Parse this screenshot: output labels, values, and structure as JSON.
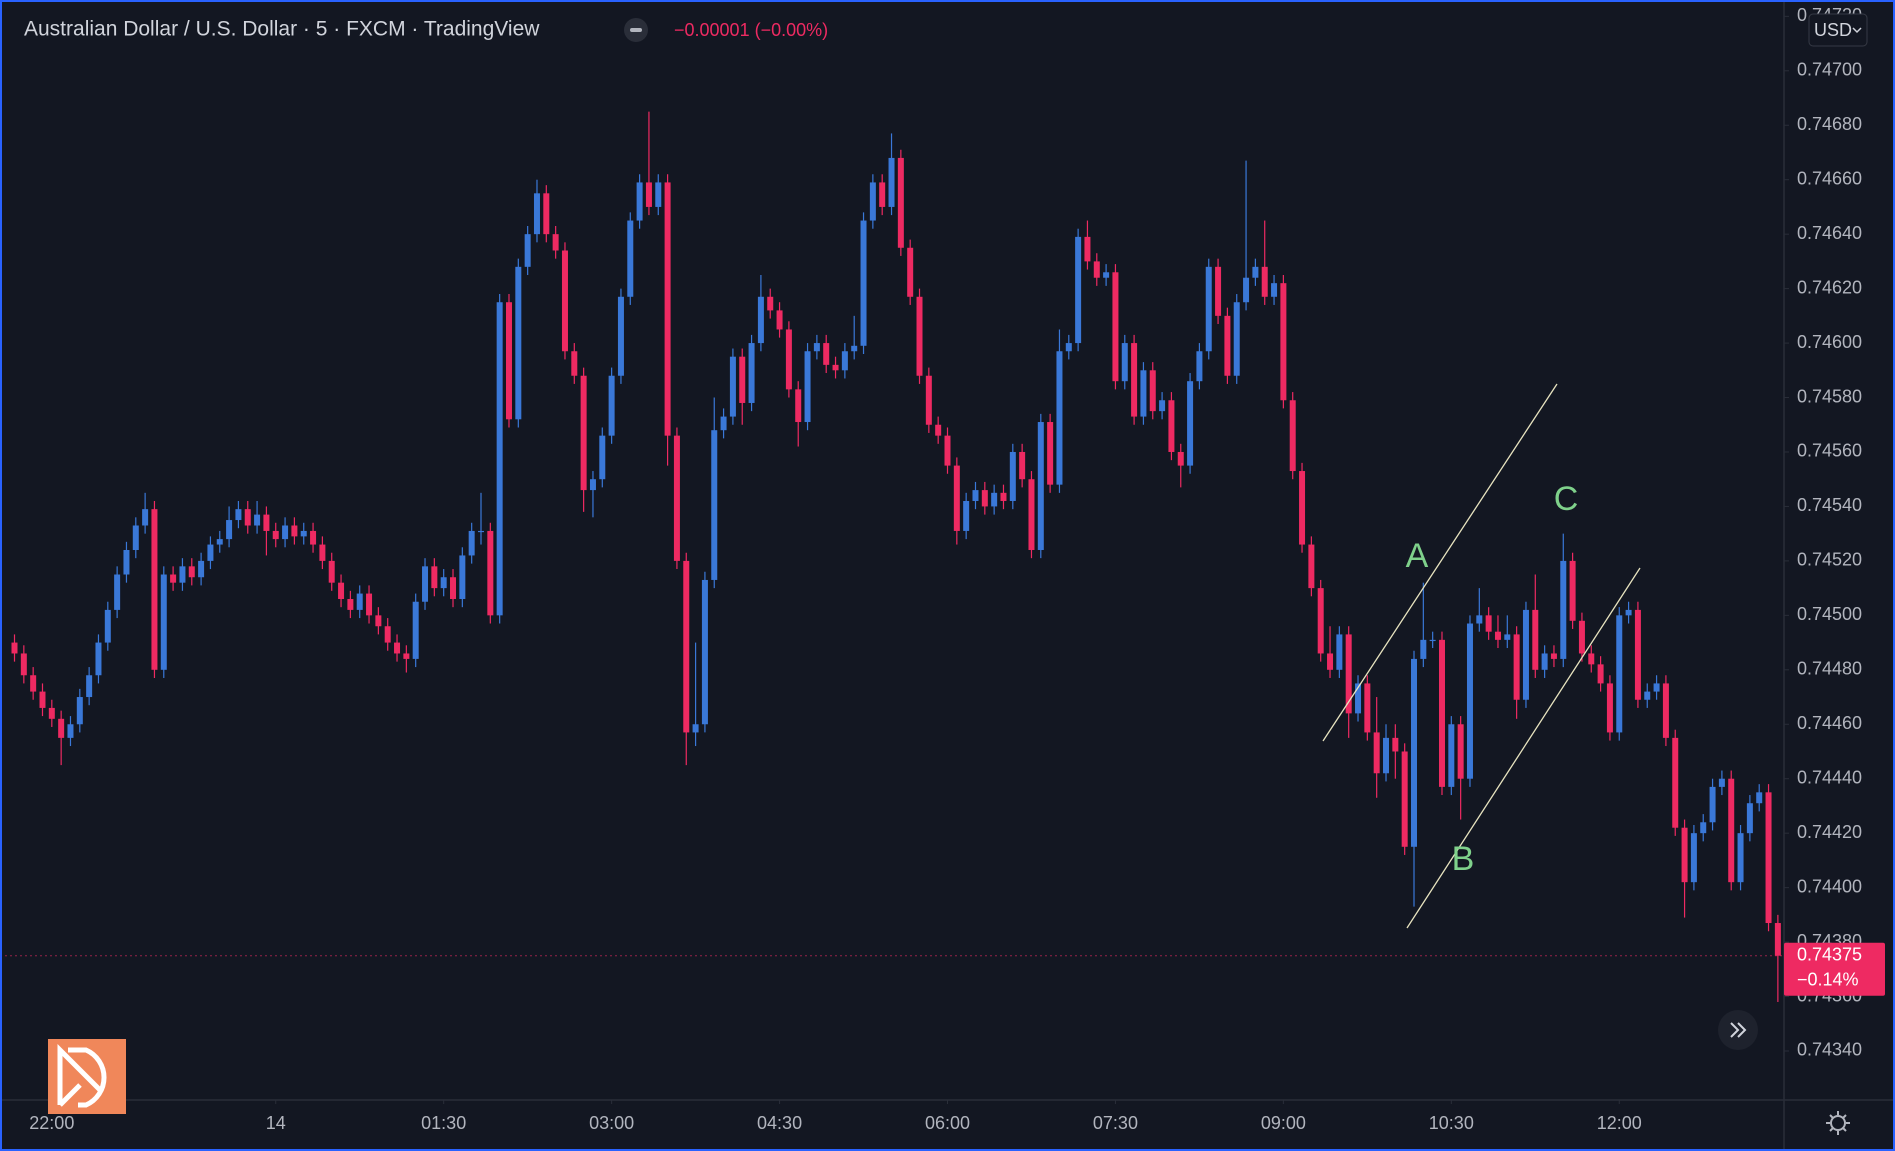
{
  "chart_data": {
    "type": "candlestick",
    "title": "Australian Dollar / U.S. Dollar · 5 · FXCM · TradingView",
    "change": "−0.00001 (−0.00%)",
    "currency": "USD",
    "last_price": 0.74375,
    "last_change": "−0.14%",
    "annotations": [
      "A",
      "B",
      "C"
    ],
    "up_color": "#3a78d8",
    "down_color": "#ee2a62",
    "ylim": [
      0.74322,
      0.74726
    ],
    "yticks": [
      {
        "value": 0.7434,
        "label": "0.74340"
      },
      {
        "value": 0.7436,
        "label": "0.74360"
      },
      {
        "value": 0.7438,
        "label": "0.74380"
      },
      {
        "value": 0.744,
        "label": "0.74400"
      },
      {
        "value": 0.7442,
        "label": "0.74420"
      },
      {
        "value": 0.7444,
        "label": "0.74440"
      },
      {
        "value": 0.7446,
        "label": "0.74460"
      },
      {
        "value": 0.7448,
        "label": "0.74480"
      },
      {
        "value": 0.745,
        "label": "0.74500"
      },
      {
        "value": 0.7452,
        "label": "0.74520"
      },
      {
        "value": 0.7454,
        "label": "0.74540"
      },
      {
        "value": 0.7456,
        "label": "0.74560"
      },
      {
        "value": 0.7458,
        "label": "0.74580"
      },
      {
        "value": 0.746,
        "label": "0.74600"
      },
      {
        "value": 0.7462,
        "label": "0.74620"
      },
      {
        "value": 0.7464,
        "label": "0.74640"
      },
      {
        "value": 0.7466,
        "label": "0.74660"
      },
      {
        "value": 0.7468,
        "label": "0.74680"
      },
      {
        "value": 0.747,
        "label": "0.74700"
      },
      {
        "value": 0.7472,
        "label": "0.74720"
      }
    ],
    "xticks": [
      {
        "value": 4,
        "label": "22:00"
      },
      {
        "value": 28,
        "label": "14"
      },
      {
        "value": 46,
        "label": "01:30"
      },
      {
        "value": 64,
        "label": "03:00"
      },
      {
        "value": 82,
        "label": "04:30"
      },
      {
        "value": 100,
        "label": "06:00"
      },
      {
        "value": 118,
        "label": "07:30"
      },
      {
        "value": 136,
        "label": "09:00"
      },
      {
        "value": 154,
        "label": "10:30"
      },
      {
        "value": 172,
        "label": "12:00"
      }
    ],
    "open": [
      0.7449,
      0.74486,
      0.74478,
      0.74472,
      0.74466,
      0.74462,
      0.74455,
      0.7446,
      0.7447,
      0.74478,
      0.7449,
      0.74502,
      0.74515,
      0.74524,
      0.74533,
      0.74539,
      0.7448,
      0.74515,
      0.74512,
      0.74518,
      0.74514,
      0.7452,
      0.74526,
      0.74528,
      0.74535,
      0.74539,
      0.74533,
      0.74537,
      0.74531,
      0.74528,
      0.74533,
      0.74529,
      0.74531,
      0.74526,
      0.7452,
      0.74512,
      0.74506,
      0.74502,
      0.74508,
      0.745,
      0.74496,
      0.7449,
      0.74486,
      0.74484,
      0.74505,
      0.74518,
      0.7451,
      0.74514,
      0.74506,
      0.74522,
      0.74531,
      0.74531,
      0.745,
      0.74615,
      0.74572,
      0.74628,
      0.7464,
      0.74655,
      0.7464,
      0.74634,
      0.74597,
      0.74588,
      0.74546,
      0.7455,
      0.74566,
      0.74588,
      0.74617,
      0.74645,
      0.74659,
      0.7465,
      0.74659,
      0.74566,
      0.7452,
      0.74457,
      0.7446,
      0.74513,
      0.74568,
      0.74573,
      0.74595,
      0.74578,
      0.746,
      0.74617,
      0.74612,
      0.74605,
      0.74583,
      0.74571,
      0.74597,
      0.746,
      0.74592,
      0.7459,
      0.74597,
      0.74599,
      0.74645,
      0.74659,
      0.7465,
      0.74668,
      0.74635,
      0.74617,
      0.74588,
      0.7457,
      0.74566,
      0.74555,
      0.74531,
      0.74542,
      0.74546,
      0.7454,
      0.74545,
      0.74542,
      0.7456,
      0.7455,
      0.74524,
      0.74571,
      0.74548,
      0.74597,
      0.746,
      0.74639,
      0.7463,
      0.74624,
      0.74626,
      0.74586,
      0.746,
      0.74573,
      0.7459,
      0.74575,
      0.74579,
      0.7456,
      0.74555,
      0.74586,
      0.74597,
      0.74628,
      0.7461,
      0.74588,
      0.74615,
      0.74624,
      0.74628,
      0.74617,
      0.74622,
      0.74579,
      0.74553,
      0.74526,
      0.7451,
      0.74486,
      0.7448,
      0.74493,
      0.74464,
      0.74475,
      0.74457,
      0.74442,
      0.74455,
      0.7445,
      0.74415,
      0.74484,
      0.74491,
      0.74491,
      0.74437,
      0.7446,
      0.7444,
      0.74497,
      0.745,
      0.74494,
      0.74491,
      0.74493,
      0.74469,
      0.74502,
      0.7448,
      0.74486,
      0.74484,
      0.7452,
      0.74498,
      0.74486,
      0.74482,
      0.74475,
      0.74457,
      0.745,
      0.74502,
      0.74469,
      0.74472,
      0.74475,
      0.74455,
      0.74422,
      0.74402,
      0.7442,
      0.74424,
      0.74437,
      0.7444,
      0.74402,
      0.7442,
      0.74431,
      0.74435,
      0.74387
    ],
    "high": [
      0.74493,
      0.74489,
      0.74481,
      0.74475,
      0.74469,
      0.74465,
      0.74463,
      0.74473,
      0.74481,
      0.74493,
      0.74505,
      0.74518,
      0.74527,
      0.74536,
      0.74545,
      0.74542,
      0.74518,
      0.74518,
      0.74521,
      0.74521,
      0.74523,
      0.74529,
      0.74531,
      0.7454,
      0.74542,
      0.74542,
      0.74542,
      0.7454,
      0.74534,
      0.74536,
      0.74536,
      0.74534,
      0.74534,
      0.74529,
      0.74523,
      0.74515,
      0.74509,
      0.74511,
      0.74511,
      0.74503,
      0.74499,
      0.74493,
      0.74489,
      0.74508,
      0.74521,
      0.74521,
      0.74517,
      0.74517,
      0.74525,
      0.74534,
      0.74545,
      0.74534,
      0.74618,
      0.74618,
      0.74631,
      0.74643,
      0.7466,
      0.74658,
      0.74643,
      0.74637,
      0.746,
      0.74591,
      0.74553,
      0.74569,
      0.74591,
      0.7462,
      0.74648,
      0.74662,
      0.74685,
      0.74662,
      0.74662,
      0.74569,
      0.74523,
      0.7449,
      0.74516,
      0.7458,
      0.74576,
      0.74598,
      0.74598,
      0.74603,
      0.74625,
      0.7462,
      0.74615,
      0.74608,
      0.74586,
      0.746,
      0.74603,
      0.74603,
      0.74595,
      0.746,
      0.7461,
      0.74648,
      0.74662,
      0.74662,
      0.74677,
      0.74671,
      0.74638,
      0.7462,
      0.74591,
      0.74573,
      0.74569,
      0.74558,
      0.74545,
      0.74549,
      0.74549,
      0.74548,
      0.74548,
      0.74563,
      0.74563,
      0.74553,
      0.74574,
      0.74574,
      0.74605,
      0.74603,
      0.74642,
      0.74645,
      0.74633,
      0.74629,
      0.74629,
      0.74603,
      0.74603,
      0.74593,
      0.74593,
      0.74582,
      0.74582,
      0.74563,
      0.74589,
      0.746,
      0.74631,
      0.74631,
      0.74613,
      0.74618,
      0.74667,
      0.74631,
      0.74645,
      0.74625,
      0.74625,
      0.74582,
      0.74556,
      0.74529,
      0.74513,
      0.74496,
      0.74496,
      0.74496,
      0.74478,
      0.74478,
      0.7447,
      0.7446,
      0.7446,
      0.74453,
      0.74487,
      0.74512,
      0.74494,
      0.74494,
      0.74463,
      0.74463,
      0.745,
      0.7451,
      0.74503,
      0.745,
      0.745,
      0.74496,
      0.74505,
      0.74515,
      0.74489,
      0.74489,
      0.7453,
      0.74523,
      0.74501,
      0.74489,
      0.74485,
      0.74478,
      0.74503,
      0.74505,
      0.74505,
      0.74475,
      0.74478,
      0.74478,
      0.74458,
      0.74425,
      0.74423,
      0.74427,
      0.7444,
      0.74443,
      0.74443,
      0.74423,
      0.74434,
      0.74438,
      0.74438,
      0.7439
    ],
    "low": [
      0.74483,
      0.74475,
      0.74469,
      0.74463,
      0.74459,
      0.74445,
      0.74452,
      0.74457,
      0.74467,
      0.74475,
      0.74487,
      0.74499,
      0.74512,
      0.74521,
      0.7453,
      0.74477,
      0.74477,
      0.74509,
      0.74509,
      0.74511,
      0.74511,
      0.74517,
      0.74523,
      0.74525,
      0.74532,
      0.7453,
      0.7453,
      0.74522,
      0.74525,
      0.74525,
      0.74526,
      0.74526,
      0.74523,
      0.74517,
      0.74509,
      0.74503,
      0.74499,
      0.74499,
      0.74497,
      0.74493,
      0.74487,
      0.74483,
      0.74479,
      0.74481,
      0.74502,
      0.74507,
      0.74507,
      0.74503,
      0.74503,
      0.74519,
      0.74526,
      0.74497,
      0.74497,
      0.74569,
      0.74569,
      0.74625,
      0.74637,
      0.74637,
      0.74631,
      0.74594,
      0.74585,
      0.74538,
      0.74536,
      0.74547,
      0.74563,
      0.74585,
      0.74614,
      0.74642,
      0.74647,
      0.74647,
      0.74555,
      0.74517,
      0.74445,
      0.74452,
      0.74457,
      0.7451,
      0.74565,
      0.7457,
      0.7457,
      0.74575,
      0.74597,
      0.74609,
      0.74602,
      0.7458,
      0.74562,
      0.74568,
      0.74594,
      0.74589,
      0.74587,
      0.74587,
      0.74594,
      0.74596,
      0.74642,
      0.74647,
      0.74647,
      0.74632,
      0.74614,
      0.74585,
      0.74567,
      0.74563,
      0.74552,
      0.74526,
      0.74528,
      0.74539,
      0.74537,
      0.74537,
      0.74539,
      0.74539,
      0.74547,
      0.74521,
      0.74521,
      0.74545,
      0.74545,
      0.74594,
      0.74597,
      0.74627,
      0.74621,
      0.74621,
      0.74583,
      0.74583,
      0.7457,
      0.7457,
      0.74572,
      0.74572,
      0.74557,
      0.74547,
      0.74552,
      0.74583,
      0.74594,
      0.74607,
      0.74585,
      0.74585,
      0.74612,
      0.74621,
      0.74614,
      0.74614,
      0.74576,
      0.7455,
      0.74523,
      0.74507,
      0.74483,
      0.74477,
      0.74477,
      0.74455,
      0.74461,
      0.74454,
      0.74433,
      0.74439,
      0.7444,
      0.74412,
      0.74393,
      0.74481,
      0.74488,
      0.74434,
      0.74434,
      0.74425,
      0.74437,
      0.74494,
      0.74491,
      0.74488,
      0.74488,
      0.74462,
      0.74466,
      0.74477,
      0.74477,
      0.74481,
      0.74481,
      0.74495,
      0.74483,
      0.74479,
      0.74472,
      0.74454,
      0.74454,
      0.74497,
      0.74466,
      0.74466,
      0.74469,
      0.74452,
      0.74419,
      0.74389,
      0.74399,
      0.74417,
      0.74421,
      0.74434,
      0.74399,
      0.74399,
      0.74417,
      0.74428,
      0.74384,
      0.74358
    ],
    "close": [
      0.74486,
      0.74478,
      0.74472,
      0.74466,
      0.74462,
      0.74455,
      0.7446,
      0.7447,
      0.74478,
      0.7449,
      0.74502,
      0.74515,
      0.74524,
      0.74533,
      0.74539,
      0.7448,
      0.74515,
      0.74512,
      0.74518,
      0.74514,
      0.7452,
      0.74526,
      0.74528,
      0.74535,
      0.74539,
      0.74533,
      0.74537,
      0.74531,
      0.74528,
      0.74533,
      0.74529,
      0.74531,
      0.74526,
      0.7452,
      0.74512,
      0.74506,
      0.74502,
      0.74508,
      0.745,
      0.74496,
      0.7449,
      0.74486,
      0.74484,
      0.74505,
      0.74518,
      0.7451,
      0.74514,
      0.74506,
      0.74522,
      0.74531,
      0.74531,
      0.745,
      0.74615,
      0.74572,
      0.74628,
      0.7464,
      0.74655,
      0.7464,
      0.74634,
      0.74597,
      0.74588,
      0.74546,
      0.7455,
      0.74566,
      0.74588,
      0.74617,
      0.74645,
      0.74659,
      0.7465,
      0.74659,
      0.74566,
      0.7452,
      0.74457,
      0.7446,
      0.74513,
      0.74568,
      0.74573,
      0.74595,
      0.74578,
      0.746,
      0.74617,
      0.74612,
      0.74605,
      0.74583,
      0.74571,
      0.74597,
      0.746,
      0.74592,
      0.7459,
      0.74597,
      0.74599,
      0.74645,
      0.74659,
      0.7465,
      0.74668,
      0.74635,
      0.74617,
      0.74588,
      0.7457,
      0.74566,
      0.74555,
      0.74531,
      0.74542,
      0.74546,
      0.7454,
      0.74545,
      0.74542,
      0.7456,
      0.7455,
      0.74524,
      0.74571,
      0.74548,
      0.74597,
      0.746,
      0.74639,
      0.7463,
      0.74624,
      0.74626,
      0.74586,
      0.746,
      0.74573,
      0.7459,
      0.74575,
      0.74579,
      0.7456,
      0.74555,
      0.74586,
      0.74597,
      0.74628,
      0.7461,
      0.74588,
      0.74615,
      0.74624,
      0.74628,
      0.74617,
      0.74622,
      0.74579,
      0.74553,
      0.74526,
      0.7451,
      0.74486,
      0.7448,
      0.74493,
      0.74464,
      0.74475,
      0.74457,
      0.74442,
      0.74455,
      0.7445,
      0.74415,
      0.74484,
      0.74491,
      0.74491,
      0.74437,
      0.7446,
      0.7444,
      0.74497,
      0.745,
      0.74494,
      0.74491,
      0.74493,
      0.74469,
      0.74502,
      0.7448,
      0.74486,
      0.74484,
      0.7452,
      0.74498,
      0.74486,
      0.74482,
      0.74475,
      0.74457,
      0.745,
      0.74502,
      0.74469,
      0.74472,
      0.74475,
      0.74455,
      0.74422,
      0.74402,
      0.7442,
      0.74424,
      0.74437,
      0.7444,
      0.74402,
      0.7442,
      0.74431,
      0.74435,
      0.74387,
      0.74375
    ]
  }
}
